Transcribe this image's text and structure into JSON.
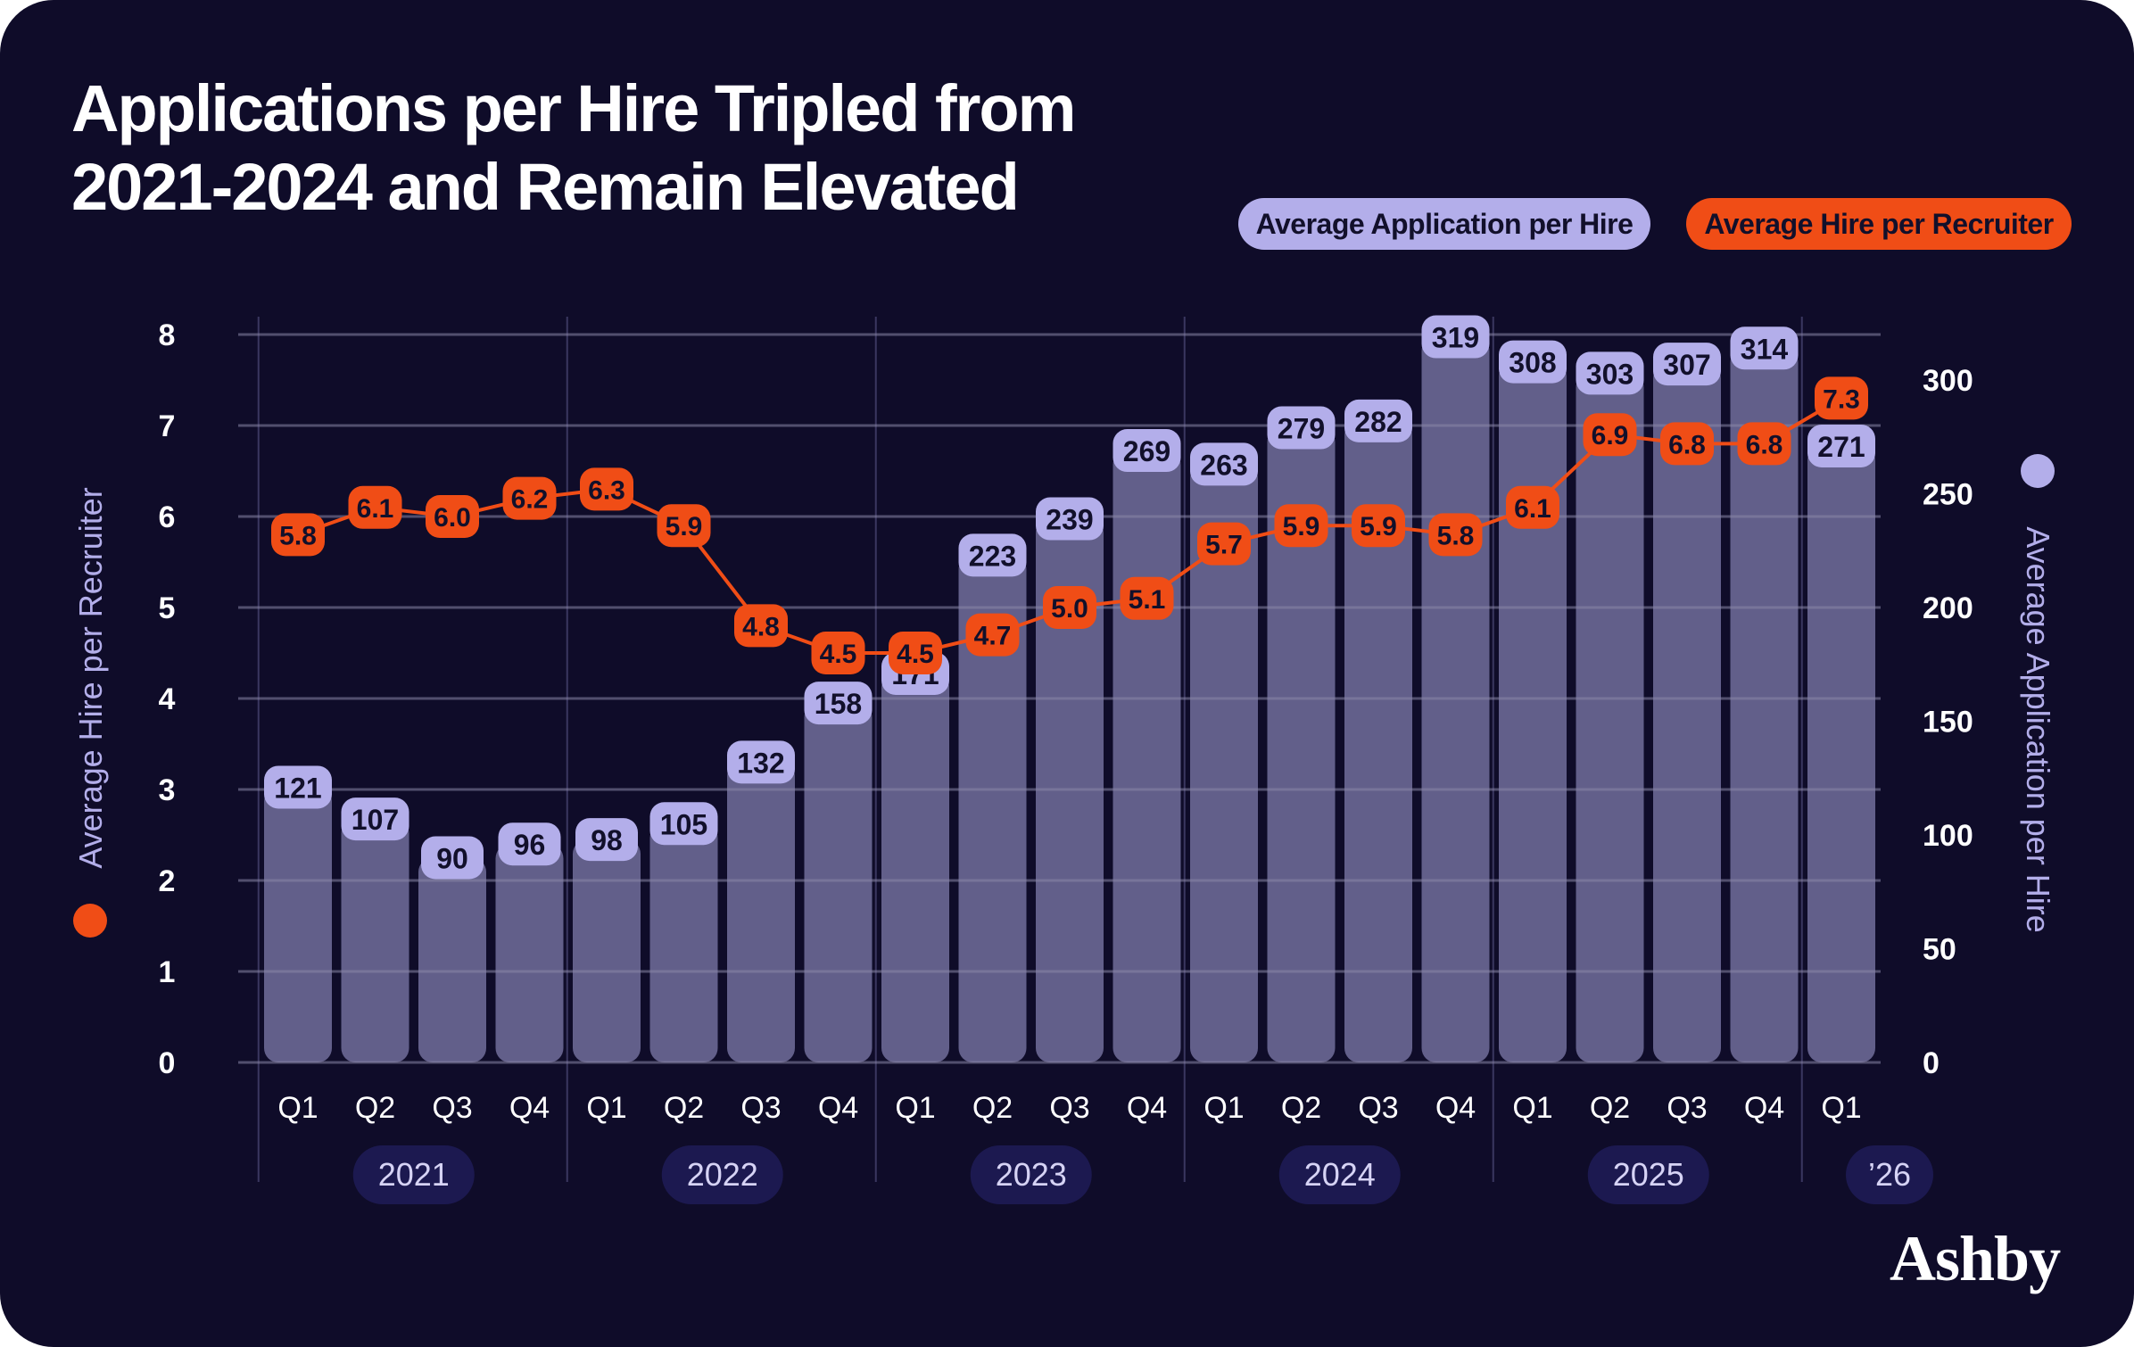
{
  "title_lines": [
    "Applications per Hire Tripled from",
    "2021-2024 and Remain Elevated"
  ],
  "legend": {
    "applications": "Average Application per Hire",
    "hires": "Average Hire per Recruiter"
  },
  "brand": "Ashby",
  "colors": {
    "background": "#0f0c29",
    "bar": "#625f8a",
    "bar_label": "#b3aeea",
    "line": "#f04d16",
    "grid": "#5e5b7e",
    "year_pill": "#1c1950",
    "year_text": "#d6d3f5",
    "text": "#ffffff",
    "label_text": "#12102b"
  },
  "chart_data": {
    "type": "bar+line",
    "title": "Applications per Hire Tripled from 2021-2024 and Remain Elevated",
    "categories": [
      "Q1",
      "Q2",
      "Q3",
      "Q4",
      "Q1",
      "Q2",
      "Q3",
      "Q4",
      "Q1",
      "Q2",
      "Q3",
      "Q4",
      "Q1",
      "Q2",
      "Q3",
      "Q4",
      "Q1",
      "Q2",
      "Q3",
      "Q4",
      "Q1"
    ],
    "year_groups": [
      {
        "label": "2021",
        "count": 4
      },
      {
        "label": "2022",
        "count": 4
      },
      {
        "label": "2023",
        "count": 4
      },
      {
        "label": "2024",
        "count": 4
      },
      {
        "label": "2025",
        "count": 4
      },
      {
        "label": "’26",
        "count": 1
      }
    ],
    "series": [
      {
        "name": "Average Application per Hire",
        "type": "bar",
        "axis": "right",
        "values": [
          121,
          107,
          90,
          96,
          98,
          105,
          132,
          158,
          171,
          223,
          239,
          269,
          263,
          279,
          282,
          319,
          308,
          303,
          307,
          314,
          271
        ]
      },
      {
        "name": "Average Hire per Recruiter",
        "type": "line",
        "axis": "left",
        "values": [
          5.8,
          6.1,
          6.0,
          6.2,
          6.3,
          5.9,
          4.8,
          4.5,
          4.5,
          4.7,
          5.0,
          5.1,
          5.7,
          5.9,
          5.9,
          5.8,
          6.1,
          6.9,
          6.8,
          6.8,
          7.3
        ]
      }
    ],
    "left_axis": {
      "label": "Average Hire per Recruiter",
      "ticks": [
        0,
        1,
        2,
        3,
        4,
        5,
        6,
        7,
        8
      ],
      "range": [
        0,
        8
      ]
    },
    "right_axis": {
      "label": "Average Application per Hire",
      "ticks": [
        0,
        50,
        100,
        150,
        200,
        250,
        300
      ],
      "range": [
        0,
        320
      ]
    },
    "grid": true,
    "legend_position": "top-right"
  }
}
